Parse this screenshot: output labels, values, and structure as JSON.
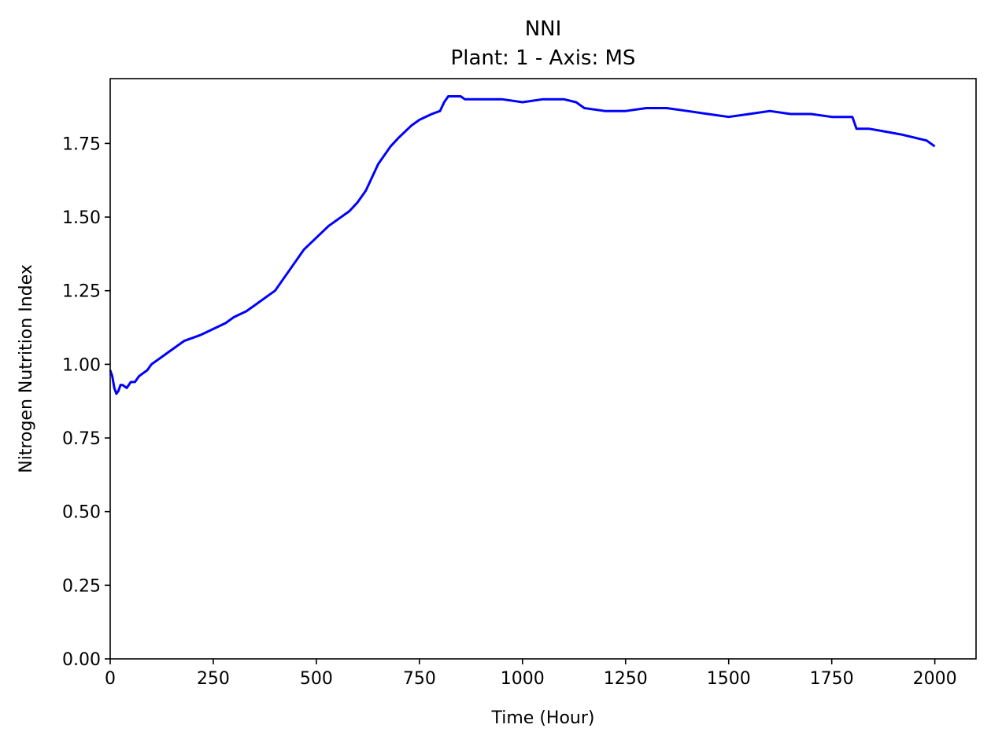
{
  "chart_data": {
    "type": "line",
    "title": "NNI",
    "subtitle": "Plant: 1 - Axis: MS",
    "xlabel": "Time (Hour)",
    "ylabel": "Nitrogen Nutrition Index",
    "xlim": [
      0,
      2100
    ],
    "ylim": [
      0,
      1.97
    ],
    "x_ticks": [
      0,
      250,
      500,
      750,
      1000,
      1250,
      1500,
      1750,
      2000
    ],
    "x_tick_labels": [
      "0",
      "250",
      "500",
      "750",
      "1000",
      "1250",
      "1500",
      "1750",
      "2000"
    ],
    "y_ticks": [
      0,
      0.25,
      0.5,
      0.75,
      1.0,
      1.25,
      1.5,
      1.75
    ],
    "y_tick_labels": [
      "0.00",
      "0.25",
      "0.50",
      "0.75",
      "1.00",
      "1.25",
      "1.50",
      "1.75"
    ],
    "grid": false,
    "legend": "none",
    "colors": {
      "line": "#0000ff",
      "axes": "#000000",
      "background": "#ffffff"
    },
    "series": [
      {
        "x": [
          0,
          5,
          10,
          15,
          20,
          25,
          30,
          40,
          50,
          60,
          70,
          80,
          90,
          100,
          120,
          140,
          160,
          180,
          200,
          220,
          250,
          280,
          300,
          330,
          350,
          380,
          400,
          420,
          450,
          470,
          500,
          530,
          550,
          580,
          600,
          620,
          650,
          680,
          700,
          730,
          750,
          780,
          800,
          810,
          820,
          835,
          850,
          860,
          880,
          900,
          950,
          1000,
          1050,
          1080,
          1100,
          1130,
          1150,
          1200,
          1250,
          1300,
          1350,
          1400,
          1450,
          1500,
          1550,
          1600,
          1650,
          1700,
          1750,
          1800,
          1810,
          1840,
          1880,
          1920,
          1950,
          1980,
          2000
        ],
        "y": [
          0.98,
          0.96,
          0.92,
          0.9,
          0.91,
          0.93,
          0.93,
          0.92,
          0.94,
          0.94,
          0.96,
          0.97,
          0.98,
          1.0,
          1.02,
          1.04,
          1.06,
          1.08,
          1.09,
          1.1,
          1.12,
          1.14,
          1.16,
          1.18,
          1.2,
          1.23,
          1.25,
          1.29,
          1.35,
          1.39,
          1.43,
          1.47,
          1.49,
          1.52,
          1.55,
          1.59,
          1.68,
          1.74,
          1.77,
          1.81,
          1.83,
          1.85,
          1.86,
          1.89,
          1.91,
          1.91,
          1.91,
          1.9,
          1.9,
          1.9,
          1.9,
          1.89,
          1.9,
          1.9,
          1.9,
          1.89,
          1.87,
          1.86,
          1.86,
          1.87,
          1.87,
          1.86,
          1.85,
          1.84,
          1.85,
          1.86,
          1.85,
          1.85,
          1.84,
          1.84,
          1.8,
          1.8,
          1.79,
          1.78,
          1.77,
          1.76,
          1.74
        ]
      }
    ]
  }
}
